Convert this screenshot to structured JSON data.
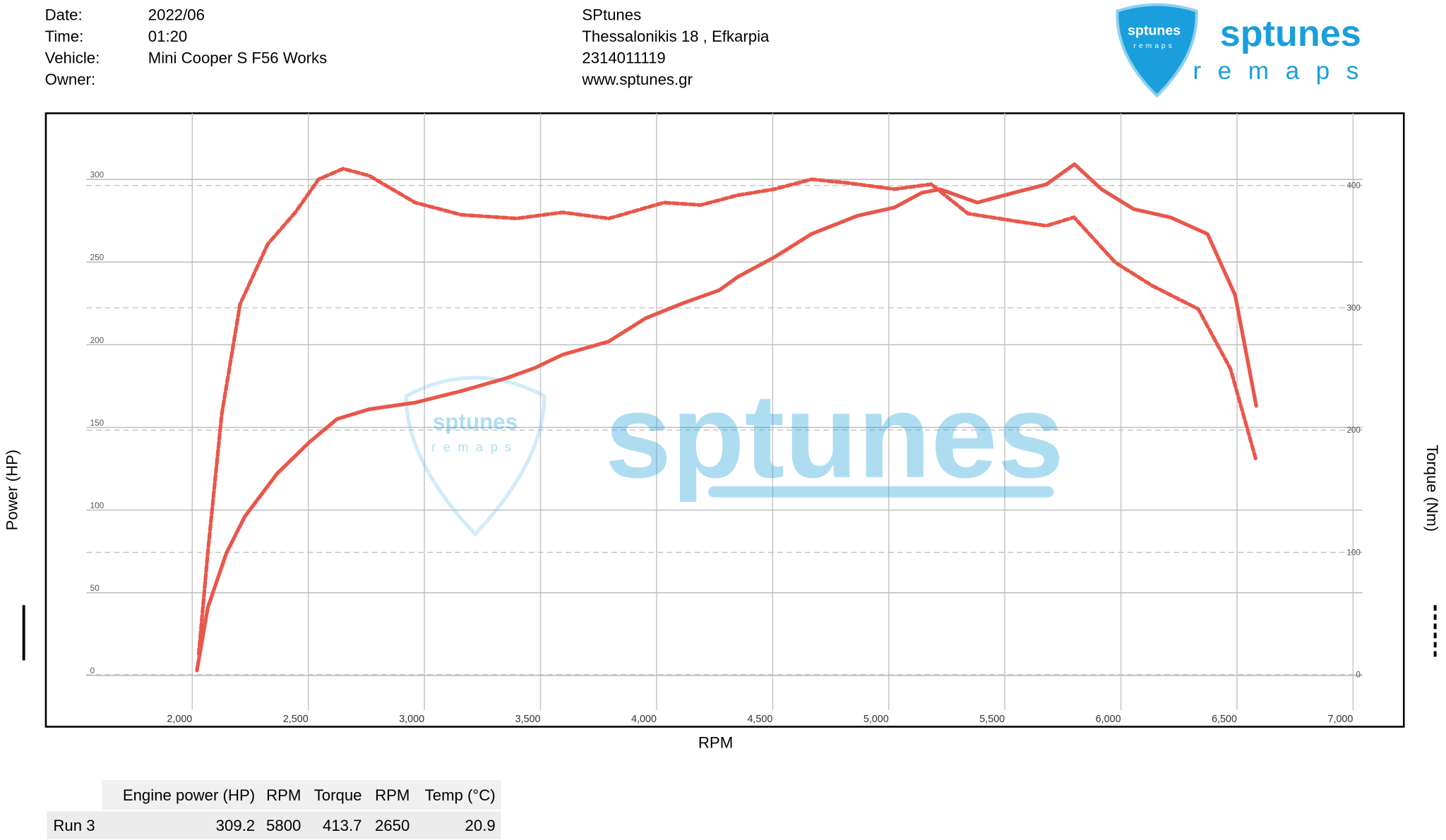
{
  "header": {
    "left": [
      {
        "label": "Date:",
        "value": "2022/06"
      },
      {
        "label": "Time:",
        "value": "01:20"
      },
      {
        "label": "Vehicle:",
        "value": "Mini Cooper S F56 Works"
      },
      {
        "label": "Owner:"
      }
    ],
    "center": [
      "SPtunes",
      "Thessalonikis 18 , Efkarpia",
      "2314011119",
      "www.sptunes.gr"
    ]
  },
  "logo": {
    "name": "sptunes",
    "tagline": "remaps"
  },
  "chart_data": {
    "type": "line",
    "x_label": "RPM",
    "y_label": "Power (HP)",
    "y2_label": "Torque (Nm)",
    "xlim": [
      1544,
      7040
    ],
    "xticks": [
      {
        "value": 2000,
        "label": "2,000"
      },
      {
        "value": 2500,
        "label": "2,500"
      },
      {
        "value": 3000,
        "label": "3,000"
      },
      {
        "value": 3500,
        "label": "3,500"
      },
      {
        "value": 4000,
        "label": "4,000"
      },
      {
        "value": 4500,
        "label": "4,500"
      },
      {
        "value": 5000,
        "label": "5,000"
      },
      {
        "value": 5500,
        "label": "5,500"
      },
      {
        "value": 6000,
        "label": "6,000"
      },
      {
        "value": 6500,
        "label": "6,500"
      },
      {
        "value": 7000,
        "label": "7,000"
      }
    ],
    "ylim": [
      -21,
      340
    ],
    "yticks": [
      0,
      50,
      100,
      150,
      200,
      250,
      300
    ],
    "y2lim": [
      -29,
      459
    ],
    "y2ticks": [
      0,
      100,
      200,
      300,
      400
    ],
    "grid": true,
    "series": [
      {
        "name": "Power (HP)",
        "color": "#e8574a",
        "style": "solid",
        "x": [
          2020,
          2067,
          2147,
          2226,
          2365,
          2504,
          2623,
          2762,
          2960,
          3159,
          3357,
          3476,
          3595,
          3794,
          3952,
          4111,
          4270,
          4349,
          4508,
          4667,
          4865,
          5024,
          5143,
          5222,
          5381,
          5540,
          5679,
          5800,
          5917,
          6056,
          6214,
          6373,
          6492,
          6583
        ],
        "values": [
          3,
          41,
          74,
          96,
          122,
          141,
          155,
          161,
          165,
          172,
          180,
          186,
          194,
          202,
          216,
          225,
          233,
          241,
          253,
          267,
          278,
          283,
          292,
          294,
          286,
          292,
          297,
          309.2,
          294,
          282,
          277,
          267,
          230,
          163
        ]
      },
      {
        "name": "Torque (Nm)",
        "color": "#e8574a",
        "style": "dashed",
        "axis": "y2",
        "x": [
          2028,
          2067,
          2127,
          2206,
          2325,
          2444,
          2544,
          2650,
          2762,
          2960,
          3159,
          3397,
          3595,
          3794,
          4032,
          4190,
          4349,
          4508,
          4667,
          4825,
          5024,
          5183,
          5341,
          5540,
          5679,
          5798,
          5976,
          6135,
          6333,
          6472,
          6583
        ],
        "values": [
          17,
          100,
          213,
          303,
          352,
          378,
          405,
          413.7,
          408,
          386,
          376,
          373,
          378,
          373,
          386,
          384,
          392,
          397,
          405,
          402,
          397,
          401,
          377,
          371,
          367,
          374,
          337,
          318,
          299,
          250,
          175
        ]
      }
    ]
  },
  "table": {
    "header": [
      "Engine power (HP)",
      "RPM",
      "Torque",
      "RPM",
      "Temp (°C)"
    ],
    "rows": [
      [
        "Run 3",
        309.2,
        5800,
        413.7,
        2650,
        20.9
      ]
    ]
  }
}
